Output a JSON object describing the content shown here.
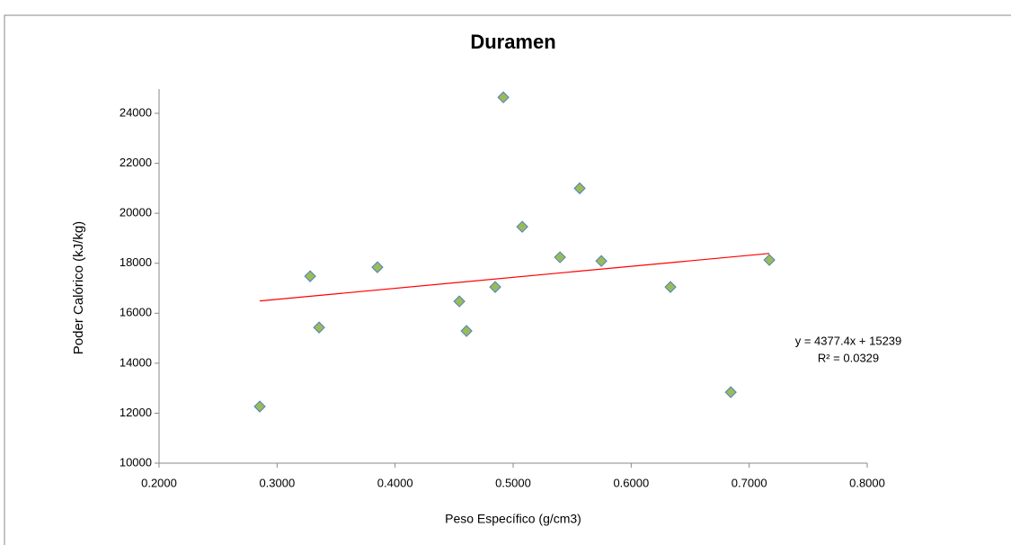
{
  "chart_data": {
    "type": "scatter",
    "title": "Duramen",
    "x_label": "Peso Específico (g/cm3)",
    "y_label": "Poder Calórico (kJ/kg)",
    "series": [
      {
        "name": "Duramen",
        "color": "#9bbb59",
        "stroke": "#4f81bd",
        "x": [
          0.2853,
          0.328,
          0.3356,
          0.385,
          0.4605,
          0.4544,
          0.4848,
          0.4917,
          0.5077,
          0.5564,
          0.5397,
          0.5747,
          0.6333,
          0.6844,
          0.7171
        ],
        "values": [
          12266,
          17480,
          15430,
          17840,
          15290,
          16475,
          17050,
          24640,
          19460,
          21000,
          18240,
          18090,
          17050,
          12840,
          18130
        ]
      }
    ],
    "trendline": {
      "color": "#ff0000",
      "equation": "y = 4377.4x + 15239",
      "r_squared": "R² = 0.0329"
    },
    "xlim": [
      0.2,
      0.8
    ],
    "xticks": [
      {
        "value": 0.2,
        "label": "0.2000"
      },
      {
        "value": 0.3,
        "label": "0.3000"
      },
      {
        "value": 0.4,
        "label": "0.4000"
      },
      {
        "value": 0.5,
        "label": "0.5000"
      },
      {
        "value": 0.6,
        "label": "0.6000"
      },
      {
        "value": 0.7,
        "label": "0.7000"
      },
      {
        "value": 0.8,
        "label": "0.8000"
      }
    ],
    "ylim": [
      10000,
      24000
    ],
    "yticks": [
      10000,
      12000,
      14000,
      16000,
      18000,
      20000,
      22000,
      24000
    ],
    "grid": false
  }
}
